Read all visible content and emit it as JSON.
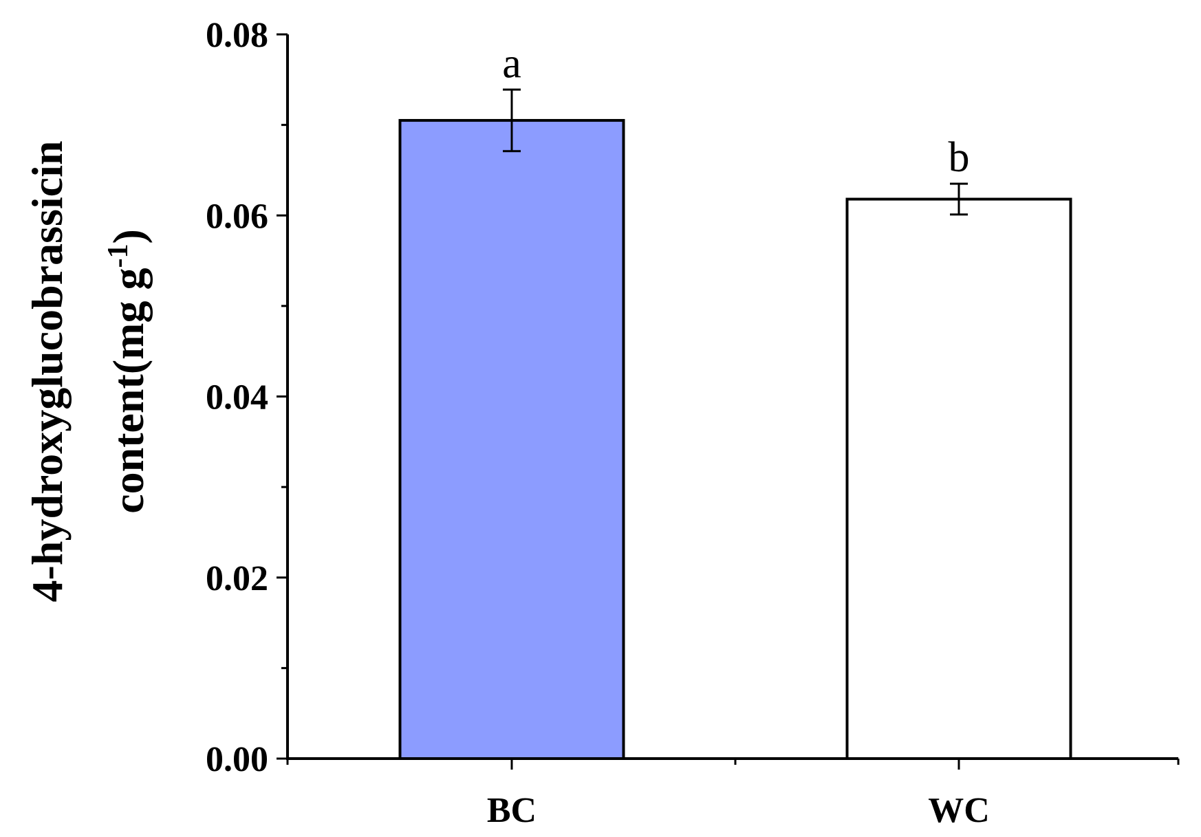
{
  "chart_data": {
    "type": "bar",
    "categories": [
      "BC",
      "WC"
    ],
    "values": [
      0.0705,
      0.0618
    ],
    "errors": [
      0.0034,
      0.0017
    ],
    "significance": [
      "a",
      "b"
    ],
    "bar_colors": [
      "#8c9cff",
      "#ffffff"
    ],
    "ylabel_line1": "4-hydroxyglucobrassicin",
    "ylabel_line2_main": "content(mg g",
    "ylabel_line2_sup": "-1",
    "ylabel_line2_close": ")",
    "ylim": [
      0,
      0.08
    ],
    "yticks": [
      "0.00",
      "0.02",
      "0.04",
      "0.06",
      "0.08"
    ],
    "ytick_values": [
      0,
      0.02,
      0.04,
      0.06,
      0.08
    ],
    "grid": false,
    "legend": "none"
  }
}
